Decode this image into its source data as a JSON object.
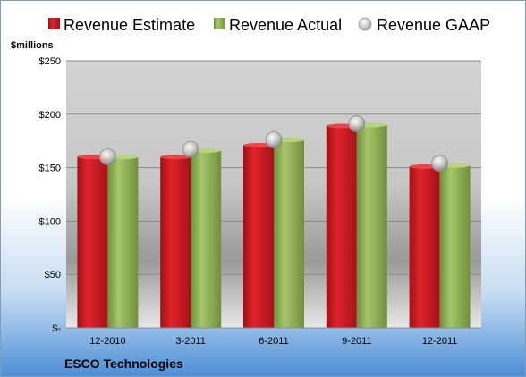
{
  "chart_data": {
    "type": "bar",
    "categories": [
      "12-2010",
      "3-2011",
      "6-2011",
      "9-2011",
      "12-2011"
    ],
    "series": [
      {
        "name": "Revenue Estimate",
        "kind": "bar",
        "color": "#c8161d",
        "values": [
          160,
          160,
          171,
          189,
          151
        ]
      },
      {
        "name": "Revenue Actual",
        "kind": "bar",
        "color": "#8db056",
        "values": [
          160,
          166,
          176,
          190,
          152
        ]
      },
      {
        "name": "Revenue GAAP",
        "kind": "marker",
        "color": "#b4b4b4",
        "values": [
          160,
          167,
          176,
          191,
          154
        ]
      }
    ],
    "ylabel": "$millions",
    "ylim": [
      0,
      250
    ],
    "yticks": [
      0,
      50,
      100,
      150,
      200,
      250
    ],
    "ytick_labels": [
      "$-",
      "$50",
      "$100",
      "$150",
      "$200",
      "$250"
    ],
    "grid": true,
    "legend": "top",
    "footer": "ESCO Technologies"
  }
}
